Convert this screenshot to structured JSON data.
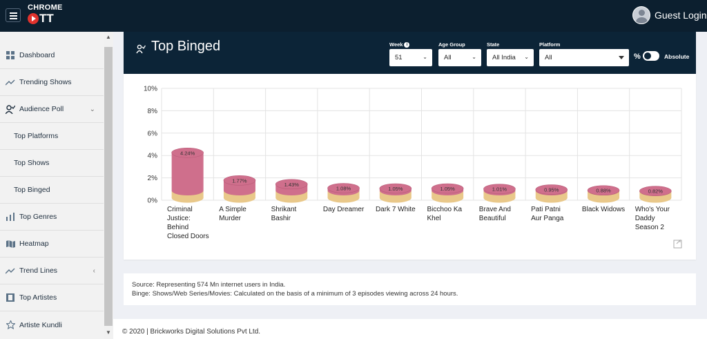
{
  "header": {
    "logo_line1": "CHROME",
    "logo_line2": "TT",
    "user_label": "Guest Login"
  },
  "sidebar": {
    "items": [
      {
        "label": "Dashboard",
        "icon": "dashboard-grid-icon"
      },
      {
        "label": "Trending Shows",
        "icon": "trending-icon"
      },
      {
        "label": "Audience Poll",
        "icon": "audience-poll-icon",
        "expanded": true
      },
      {
        "label": "Top Platforms",
        "sub": true
      },
      {
        "label": "Top Shows",
        "sub": true
      },
      {
        "label": "Top Binged",
        "sub": true
      },
      {
        "label": "Top Genres",
        "icon": "bar-chart-icon"
      },
      {
        "label": "Heatmap",
        "icon": "map-icon"
      },
      {
        "label": "Trend Lines",
        "icon": "trend-lines-icon",
        "collapsible": true
      },
      {
        "label": "Top Artistes",
        "icon": "film-icon"
      },
      {
        "label": "Artiste Kundli",
        "icon": "star-icon"
      }
    ]
  },
  "panel": {
    "title": "Top Binged",
    "filters": {
      "week_label": "Week",
      "week_value": "51",
      "age_label": "Age Group",
      "age_value": "All",
      "state_label": "State",
      "state_value": "All India",
      "platform_label": "Platform",
      "platform_value": "All"
    },
    "toggle_left": "%",
    "toggle_right": "Absolute"
  },
  "chart_data": {
    "type": "bar",
    "categories": [
      "Criminal Justice: Behind Closed Doors",
      "A Simple Murder",
      "Shrikant Bashir",
      "Day Dreamer",
      "Dark 7 White",
      "Bicchoo Ka Khel",
      "Brave And Beautiful",
      "Pati Patni Aur Panga",
      "Black Widows",
      "Who's Your Daddy Season 2"
    ],
    "category_lines": [
      [
        "Criminal",
        "Justice:",
        "Behind",
        "Closed Doors"
      ],
      [
        "A Simple",
        "Murder"
      ],
      [
        "Shrikant",
        "Bashir"
      ],
      [
        "Day Dreamer"
      ],
      [
        "Dark 7 White"
      ],
      [
        "Bicchoo Ka",
        "Khel"
      ],
      [
        "Brave And",
        "Beautiful"
      ],
      [
        "Pati Patni",
        "Aur Panga"
      ],
      [
        "Black Widows"
      ],
      [
        "Who's Your",
        "Daddy",
        "Season 2"
      ]
    ],
    "values": [
      4.24,
      1.77,
      1.43,
      1.08,
      1.05,
      1.05,
      1.01,
      0.95,
      0.88,
      0.82
    ],
    "labels": [
      "4.24%",
      "1.77%",
      "1.43%",
      "1.08%",
      "1.05%",
      "1.05%",
      "1.01%",
      "0.95%",
      "0.88%",
      "0.82%"
    ],
    "y_ticks": [
      "0%",
      "2%",
      "4%",
      "6%",
      "8%",
      "10%"
    ],
    "ylim": [
      0,
      10
    ],
    "grid": true,
    "colors": {
      "top": "#cf6f8c",
      "base": "#e9c88a"
    }
  },
  "source": {
    "line1": "Source: Representing 574 Mn internet users in India.",
    "line2": "Binge: Shows/Web Series/Movies: Calculated on the basis of a minimum of 3 episodes viewing across 24 hours."
  },
  "footer": "© 2020 | Brickworks Digital Solutions Pvt Ltd."
}
